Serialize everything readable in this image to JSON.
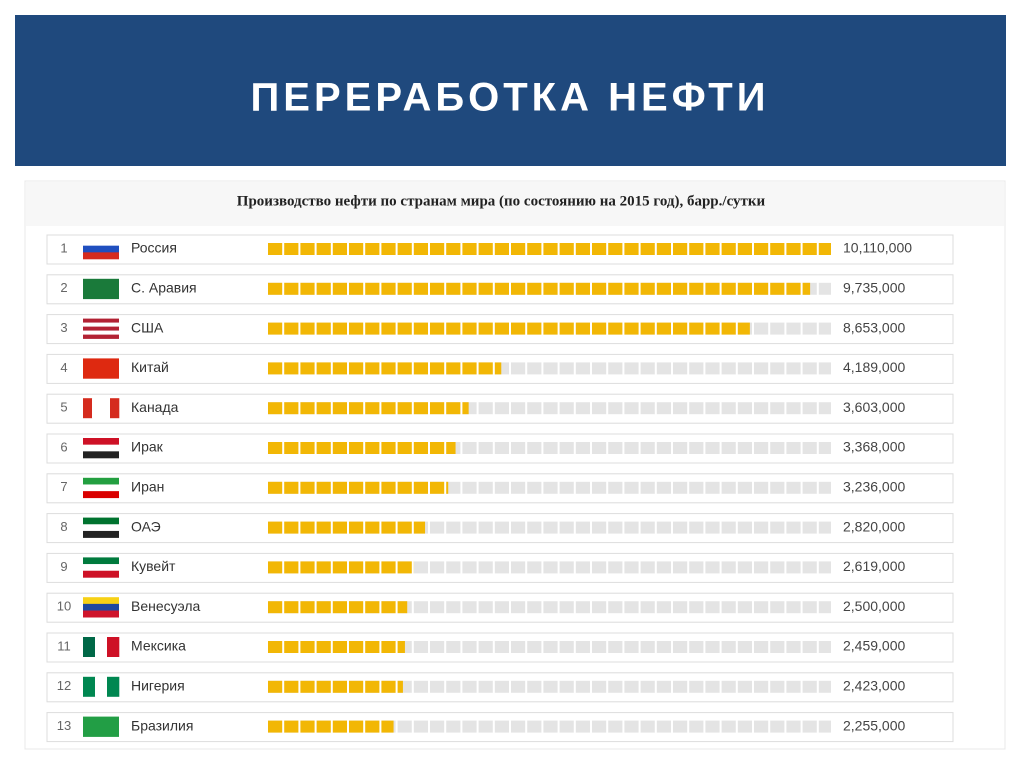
{
  "header": {
    "title": "ПЕРЕРАБОТКА НЕФТИ"
  },
  "chart_data": {
    "type": "bar",
    "orientation": "horizontal",
    "title": "Производство нефти по странам мира (по состоянию на 2015 год), барр./сутки",
    "ranks": [
      1,
      2,
      3,
      4,
      5,
      6,
      7,
      8,
      9,
      10,
      11,
      12,
      13
    ],
    "categories": [
      "Россия",
      "С. Аравия",
      "США",
      "Китай",
      "Канада",
      "Ирак",
      "Иран",
      "ОАЭ",
      "Кувейт",
      "Венесуэла",
      "Мексика",
      "Нигерия",
      "Бразилия"
    ],
    "values": [
      10110000,
      9735000,
      8653000,
      4189000,
      3603000,
      3368000,
      3236000,
      2820000,
      2619000,
      2500000,
      2459000,
      2423000,
      2255000
    ],
    "value_labels": [
      "10,110,000",
      "9,735,000",
      "8,653,000",
      "4,189,000",
      "3,603,000",
      "3,368,000",
      "3,236,000",
      "2,820,000",
      "2,619,000",
      "2,500,000",
      "2,459,000",
      "2,423,000",
      "2,255,000"
    ],
    "color": "#f2b705",
    "track_color": "#e4e4e4",
    "xlim": [
      0,
      10110000
    ]
  }
}
